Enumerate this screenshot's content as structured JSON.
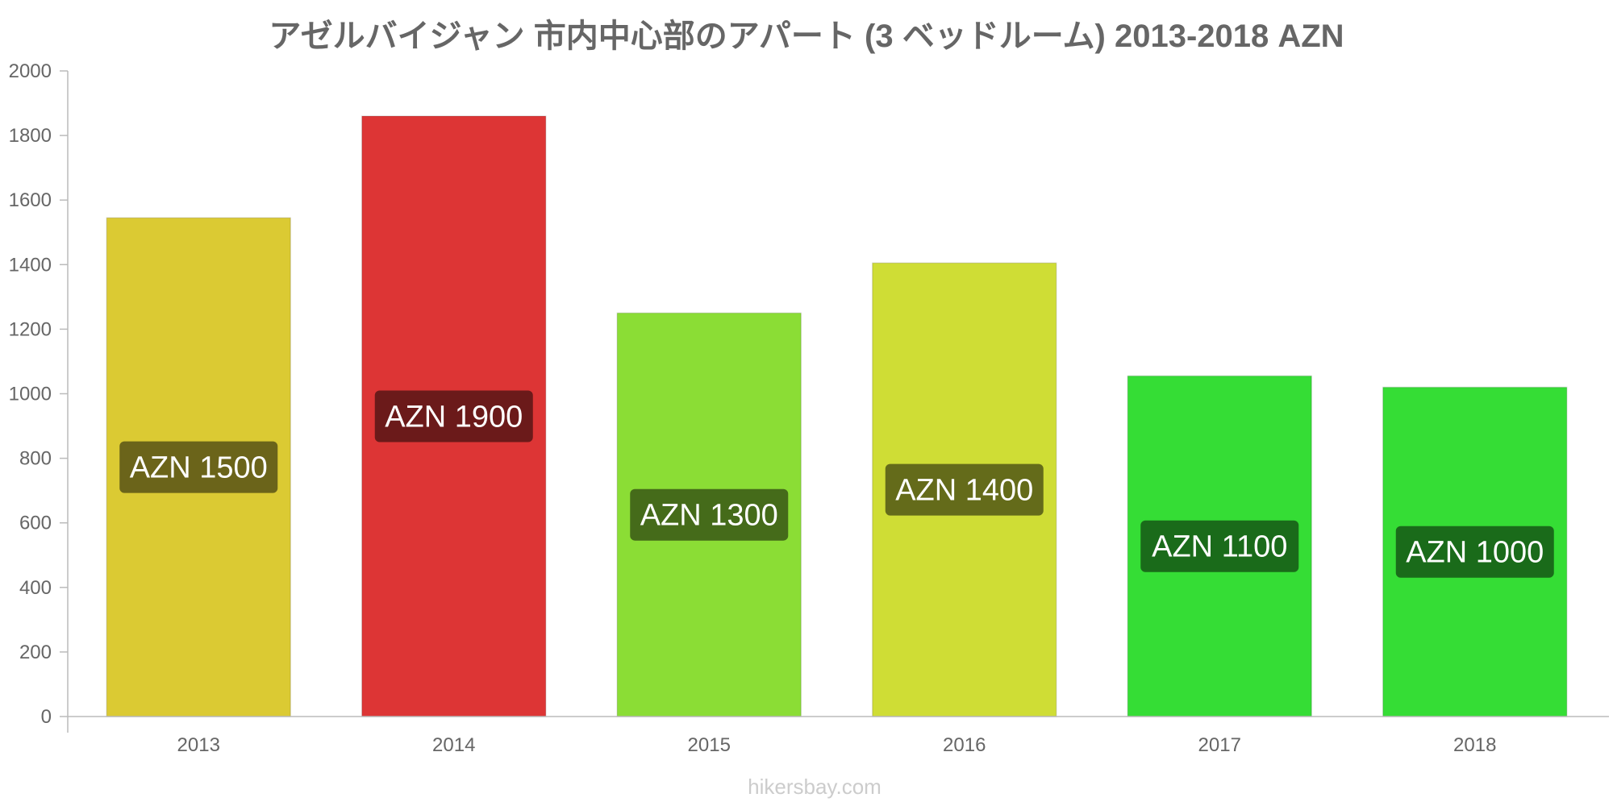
{
  "chart_data": {
    "type": "bar",
    "title": "アゼルバイジャン 市内中心部のアパート (3 ベッドルーム) 2013-2018 AZN",
    "categories": [
      "2013",
      "2014",
      "2015",
      "2016",
      "2017",
      "2018"
    ],
    "values": [
      1545,
      1860,
      1250,
      1405,
      1055,
      1020
    ],
    "data_labels": [
      "AZN 1500",
      "AZN 1900",
      "AZN 1300",
      "AZN 1400",
      "AZN 1100",
      "AZN 1000"
    ],
    "colors": [
      "#dbca33",
      "#dd3535",
      "#8bdd35",
      "#cfdd35",
      "#35dd35",
      "#35dd35"
    ],
    "label_colors": [
      "#6b641a",
      "#6b1a1a",
      "#456b1a",
      "#646b1a",
      "#1a6b1a",
      "#1a6b1a"
    ],
    "ylim": [
      0,
      2000
    ],
    "yticks": [
      0,
      200,
      400,
      600,
      800,
      1000,
      1200,
      1400,
      1600,
      1800,
      2000
    ],
    "xlabel": "",
    "ylabel": "",
    "grid": false,
    "legend": "none"
  },
  "watermark": "hikersbay.com"
}
